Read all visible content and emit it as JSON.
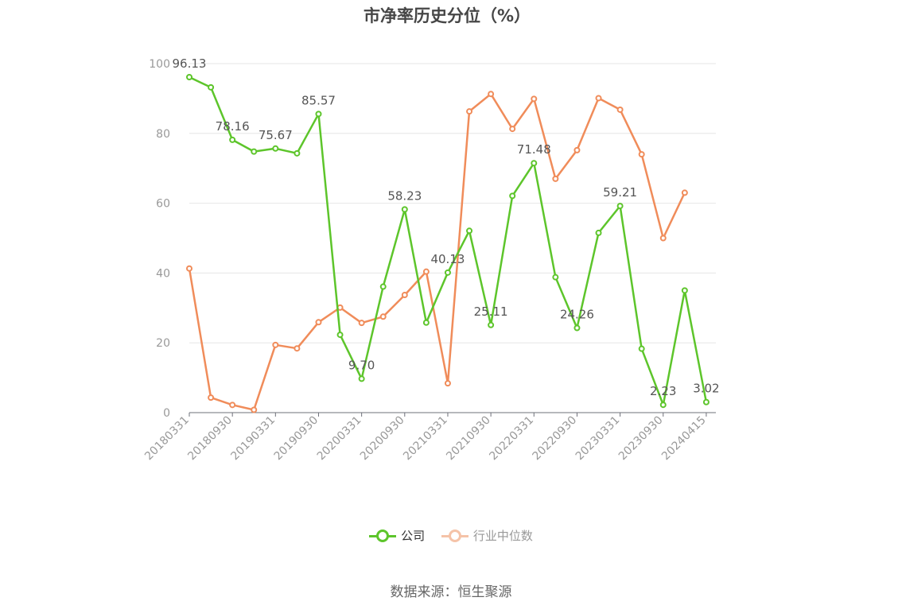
{
  "chart_data": {
    "type": "line",
    "title": "市净率历史分位（%）",
    "ylim": [
      0,
      100
    ],
    "yticks": [
      0,
      20,
      40,
      60,
      80,
      100
    ],
    "grid": true,
    "legend_position": "bottom",
    "x": [
      "20180331",
      "20180630",
      "20180930",
      "20181231",
      "20190331",
      "20190630",
      "20190930",
      "20191231",
      "20200331",
      "20200630",
      "20200930",
      "20201231",
      "20210331",
      "20210630",
      "20210930",
      "20211231",
      "20220331",
      "20220630",
      "20220930",
      "20221231",
      "20230331",
      "20230630",
      "20230930",
      "20231231",
      "20240415"
    ],
    "x_tick_labels": [
      "20180331",
      "20180930",
      "20190331",
      "20190930",
      "20200331",
      "20200930",
      "20210331",
      "20210930",
      "20220331",
      "20220930",
      "20230331",
      "20230930",
      "20240415"
    ],
    "series": [
      {
        "name": "公司",
        "color": "#5dc52b",
        "values": [
          96.13,
          93.2,
          78.16,
          74.8,
          75.67,
          74.3,
          85.57,
          22.3,
          9.7,
          36.1,
          58.23,
          25.8,
          40.13,
          52.1,
          25.11,
          62.1,
          71.48,
          38.8,
          24.26,
          51.5,
          59.21,
          18.3,
          2.23,
          35.0,
          3.02
        ],
        "labels": [
          "96.13",
          "",
          "78.16",
          "",
          "75.67",
          "",
          "85.57",
          "",
          "9.70",
          "",
          "58.23",
          "",
          "40.13",
          "",
          "25.11",
          "",
          "71.48",
          "",
          "24.26",
          "",
          "59.21",
          "",
          "2.23",
          "",
          "3.02"
        ]
      },
      {
        "name": "行业中位数",
        "color": "#f08c5a",
        "values": [
          41.3,
          4.3,
          2.2,
          0.8,
          19.4,
          18.4,
          25.9,
          30.1,
          25.7,
          27.5,
          33.7,
          40.4,
          8.4,
          86.3,
          91.3,
          81.3,
          89.9,
          67.0,
          75.2,
          90.1,
          86.8,
          74.0,
          50.0,
          63.0,
          null
        ]
      }
    ]
  },
  "legend": {
    "company": "公司",
    "industry": "行业中位数"
  },
  "source": "数据来源：恒生聚源"
}
